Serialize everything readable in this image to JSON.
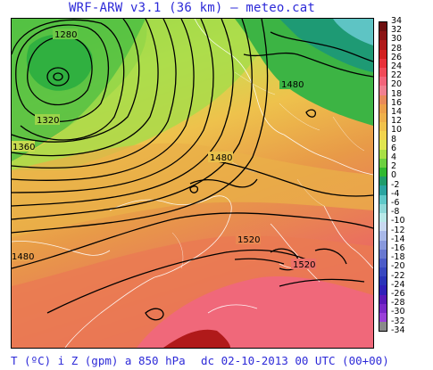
{
  "title": "WRF-ARW v3.1 (36 km) — meteo.cat",
  "footer": {
    "left": "T (ºC) i Z (gpm) a 850 hPa",
    "right": "dc 02-10-2013 00 UTC (00+00)"
  },
  "contour_labels": [
    "1280",
    "1320",
    "1360",
    "1480",
    "1480",
    "1480",
    "1520",
    "1520"
  ],
  "colorbar": {
    "labels": [
      "34",
      "32",
      "30",
      "28",
      "26",
      "24",
      "22",
      "20",
      "18",
      "16",
      "14",
      "12",
      "10",
      "8",
      "6",
      "4",
      "2",
      "0",
      "-2",
      "-4",
      "-6",
      "-8",
      "-10",
      "-12",
      "-14",
      "-16",
      "-18",
      "-20",
      "-22",
      "-24",
      "-26",
      "-28",
      "-30",
      "-32",
      "-34"
    ],
    "colors": [
      "#6e0f0f",
      "#8b1414",
      "#b01a1a",
      "#d22020",
      "#e8303a",
      "#f04a58",
      "#f2647a",
      "#f08090",
      "#e88a5a",
      "#eca04a",
      "#eeb04a",
      "#f0c24c",
      "#f2d44e",
      "#e0e650",
      "#a8e046",
      "#6cd040",
      "#30b830",
      "#1f9c6a",
      "#2aa4a0",
      "#5ec8c8",
      "#8ed8d8",
      "#b8e8e8",
      "#c8d8f0",
      "#a8b8e8",
      "#8898dc",
      "#6878d0",
      "#4c5cc8",
      "#3848c0",
      "#2a34b8",
      "#3020b8",
      "#5a18b8",
      "#7a28c8",
      "#9a40d8",
      "#8a8a8a"
    ]
  }
}
